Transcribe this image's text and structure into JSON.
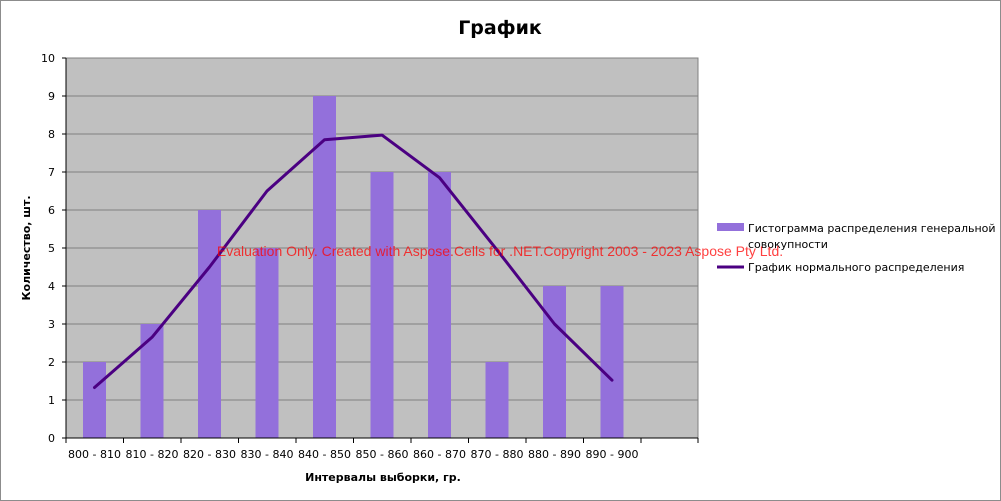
{
  "chart_data": {
    "type": "bar",
    "title": "График",
    "xlabel": "Интервалы выборки, гр.",
    "ylabel": "Количество, шт.",
    "ylim": [
      0,
      10
    ],
    "yticks": [
      0,
      1,
      2,
      3,
      4,
      5,
      6,
      7,
      8,
      9,
      10
    ],
    "grid": true,
    "legend_position": "right",
    "categories": [
      "800 - 810",
      "810 - 820",
      "820 - 830",
      "830 - 840",
      "840 - 850",
      "850 - 860",
      "860 - 870",
      "870 - 880",
      "880 - 890",
      "890 - 900"
    ],
    "series": [
      {
        "name": "Гистограмма распределения генеральной совокупности",
        "type": "bar",
        "color": "#9370DB",
        "values": [
          2,
          3,
          6,
          5,
          9,
          7,
          7,
          2,
          4,
          4
        ]
      },
      {
        "name": "График нормального распределения",
        "type": "line",
        "color": "#4B0082",
        "values": [
          1.33,
          2.65,
          4.5,
          6.5,
          7.85,
          7.97,
          6.85,
          4.95,
          3.0,
          1.52
        ]
      }
    ],
    "legend": [
      {
        "label_lines": [
          "Гистограмма распределения генеральной",
          "совокупности"
        ],
        "kind": "bar",
        "color": "#9370DB"
      },
      {
        "label_lines": [
          "График нормального распределения"
        ],
        "kind": "line",
        "color": "#4B0082"
      }
    ],
    "colors": {
      "plot_background": "#C0C0C0",
      "gridline": "#808080"
    }
  },
  "watermark": "Evaluation Only. Created with Aspose.Cells for .NET.Copyright 2003 - 2023 Aspose Pty Ltd."
}
